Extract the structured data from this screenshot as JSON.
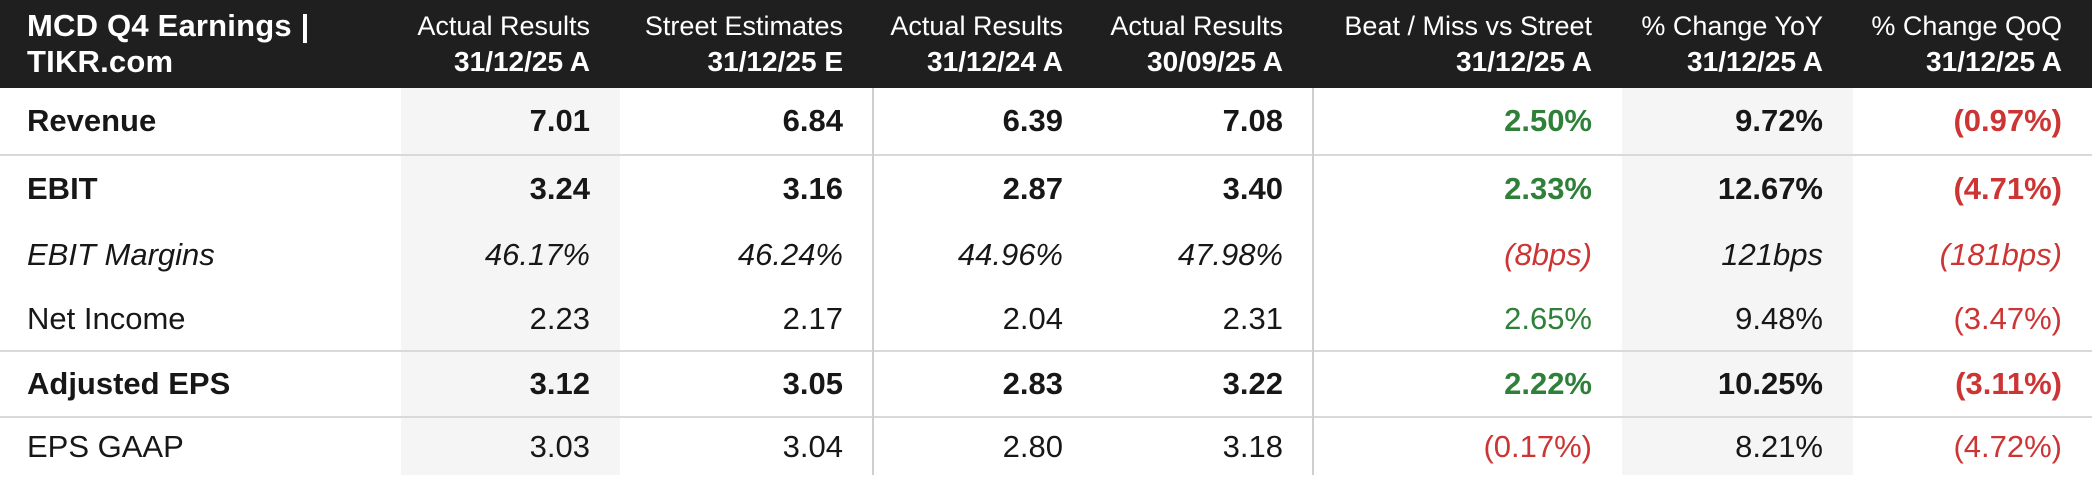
{
  "title": "MCD Q4 Earnings | TIKR.com",
  "chart_data": {
    "type": "table",
    "title": "MCD Q4 Earnings | TIKR.com",
    "columns": [
      {
        "label": "Actual Results",
        "date": "31/12/25 A",
        "highlighted": true
      },
      {
        "label": "Street Estimates",
        "date": "31/12/25 E",
        "highlighted": false
      },
      {
        "label": "Actual Results",
        "date": "31/12/24 A",
        "highlighted": false
      },
      {
        "label": "Actual Results",
        "date": "30/09/25 A",
        "highlighted": false
      },
      {
        "label": "Beat / Miss vs Street",
        "date": "31/12/25 A",
        "highlighted": false
      },
      {
        "label": "% Change YoY",
        "date": "31/12/25 A",
        "highlighted": true
      },
      {
        "label": "% Change QoQ",
        "date": "31/12/25 A",
        "highlighted": false
      }
    ],
    "rows": [
      {
        "label": "Revenue",
        "emphasis": "bold",
        "divider_below": true,
        "cells": [
          {
            "text": "7.01"
          },
          {
            "text": "6.84"
          },
          {
            "text": "6.39"
          },
          {
            "text": "7.08"
          },
          {
            "text": "2.50%",
            "color": "positive"
          },
          {
            "text": "9.72%"
          },
          {
            "text": "(0.97%)",
            "color": "negative"
          }
        ]
      },
      {
        "label": "EBIT",
        "emphasis": "bold",
        "divider_below": false,
        "cells": [
          {
            "text": "3.24"
          },
          {
            "text": "3.16"
          },
          {
            "text": "2.87"
          },
          {
            "text": "3.40"
          },
          {
            "text": "2.33%",
            "color": "positive"
          },
          {
            "text": "12.67%"
          },
          {
            "text": "(4.71%)",
            "color": "negative"
          }
        ]
      },
      {
        "label": "EBIT Margins",
        "emphasis": "italic",
        "divider_below": false,
        "cells": [
          {
            "text": "46.17%"
          },
          {
            "text": "46.24%"
          },
          {
            "text": "44.96%"
          },
          {
            "text": "47.98%"
          },
          {
            "text": "(8bps)",
            "color": "negative"
          },
          {
            "text": "121bps"
          },
          {
            "text": "(181bps)",
            "color": "negative"
          }
        ]
      },
      {
        "label": "Net Income",
        "emphasis": "regular",
        "divider_below": true,
        "cells": [
          {
            "text": "2.23"
          },
          {
            "text": "2.17"
          },
          {
            "text": "2.04"
          },
          {
            "text": "2.31"
          },
          {
            "text": "2.65%",
            "color": "positive"
          },
          {
            "text": "9.48%"
          },
          {
            "text": "(3.47%)",
            "color": "negative"
          }
        ]
      },
      {
        "label": "Adjusted EPS",
        "emphasis": "bold",
        "divider_below": true,
        "cells": [
          {
            "text": "3.12"
          },
          {
            "text": "3.05"
          },
          {
            "text": "2.83"
          },
          {
            "text": "3.22"
          },
          {
            "text": "2.22%",
            "color": "positive"
          },
          {
            "text": "10.25%"
          },
          {
            "text": "(3.11%)",
            "color": "negative"
          }
        ]
      },
      {
        "label": "EPS GAAP",
        "emphasis": "regular",
        "divider_below": false,
        "cells": [
          {
            "text": "3.03"
          },
          {
            "text": "3.04"
          },
          {
            "text": "2.80"
          },
          {
            "text": "3.18"
          },
          {
            "text": "(0.17%)",
            "color": "negative"
          },
          {
            "text": "8.21%"
          },
          {
            "text": "(4.72%)",
            "color": "negative"
          }
        ]
      }
    ]
  },
  "colors": {
    "header_bg": "#1f1f1f",
    "highlight_bg": "#f5f5f6",
    "divider": "#d9d9d9",
    "vline": "#cfcfcf",
    "positive": "#2f8038",
    "negative": "#cd3434",
    "body_text": "#171717"
  }
}
